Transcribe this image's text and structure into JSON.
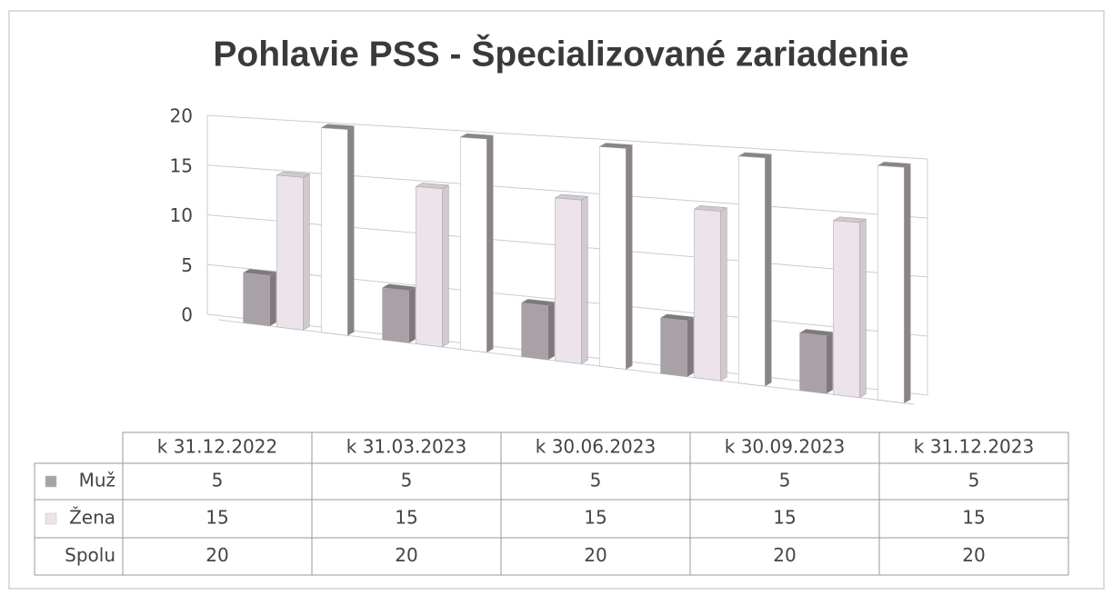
{
  "chart_data": {
    "type": "bar3d",
    "title": "Pohlavie PSS - Špecializované zariadenie",
    "categories": [
      "k 31.12.2022",
      "k 31.03.2023",
      "k 30.06.2023",
      "k 30.09.2023",
      "k 31.12.2023"
    ],
    "series": [
      {
        "name": "Muž",
        "color": "#a9a1a8",
        "values": [
          5,
          5,
          5,
          5,
          5
        ]
      },
      {
        "name": "Žena",
        "color": "#ece4ea",
        "values": [
          15,
          15,
          15,
          15,
          15
        ]
      },
      {
        "name": "Spolu",
        "color": "#ffffff",
        "values": [
          20,
          20,
          20,
          20,
          20
        ]
      }
    ],
    "ylim": [
      0,
      20
    ],
    "yticks": [
      0,
      5,
      10,
      15,
      20
    ],
    "grid": true,
    "data_table": true
  }
}
